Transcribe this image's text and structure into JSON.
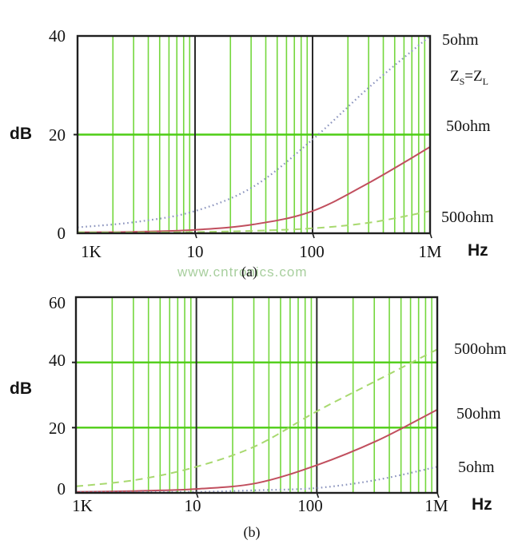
{
  "watermark": "www.cntronics.com",
  "colors": {
    "axis_black": "#1f1f1f",
    "decade_black": "#2a2a2a",
    "grid_green_minor": "#74d73d",
    "grid_green_major": "#4ecd15",
    "curve_blue": "#8a93bd",
    "curve_red": "#c14f5e",
    "curve_light_green": "#a8d96f",
    "text_black": "#141414",
    "watermark_green": "#a8cf9e"
  },
  "chart_data": [
    {
      "type": "line",
      "caption": "(a)",
      "ylabel": "dB",
      "xlabel": "Hz",
      "x_scale": "log",
      "x_decades": 3,
      "grid": true,
      "legend_position": "right",
      "x_tick_labels": [
        "1K",
        "10",
        "100",
        "1M"
      ],
      "y_tick_labels": [
        "40",
        "20",
        "0"
      ],
      "ylim": [
        0,
        40
      ],
      "y_gridlines": [
        20
      ],
      "annotation": {
        "z1": "Z",
        "s1": "S",
        "eq": "=",
        "z2": "Z",
        "s2": "L"
      },
      "x_log_positions": [
        0,
        0.5,
        1,
        1.5,
        2,
        2.5,
        3
      ],
      "series": [
        {
          "name": "5ohm",
          "style": "dotted",
          "color": "#8a93bd",
          "values": [
            1.2,
            2.3,
            4.5,
            9.5,
            19,
            30,
            40
          ]
        },
        {
          "name": "50ohm",
          "style": "solid",
          "color": "#c14f5e",
          "values": [
            0.2,
            0.3,
            0.7,
            1.8,
            4.5,
            10.5,
            17.5
          ]
        },
        {
          "name": "500ohm",
          "style": "dashed",
          "color": "#a8d96f",
          "values": [
            0.1,
            0.15,
            0.25,
            0.5,
            1.0,
            2.2,
            4.5
          ]
        }
      ]
    },
    {
      "type": "line",
      "caption": "(b)",
      "ylabel": "dB",
      "xlabel": "Hz",
      "x_scale": "log",
      "x_decades": 3,
      "grid": true,
      "legend_position": "right",
      "x_tick_labels": [
        "1K",
        "10",
        "100",
        "1M"
      ],
      "y_tick_labels": [
        "60",
        "40",
        "20",
        "0"
      ],
      "ylim": [
        0,
        60
      ],
      "y_gridlines": [
        20,
        40
      ],
      "x_log_positions": [
        0,
        0.5,
        1,
        1.5,
        2,
        2.5,
        3
      ],
      "series": [
        {
          "name": "500ohm",
          "style": "dashed",
          "color": "#a8d96f",
          "values": [
            2,
            4,
            8,
            14.5,
            25,
            34.5,
            44
          ]
        },
        {
          "name": "50ohm",
          "style": "solid",
          "color": "#c14f5e",
          "values": [
            0.3,
            0.6,
            1.2,
            3,
            8.5,
            16,
            25.5
          ]
        },
        {
          "name": "5ohm",
          "style": "dotted",
          "color": "#8a93bd",
          "values": [
            0.1,
            0.15,
            0.3,
            0.8,
            1.5,
            4,
            8
          ]
        }
      ]
    }
  ]
}
